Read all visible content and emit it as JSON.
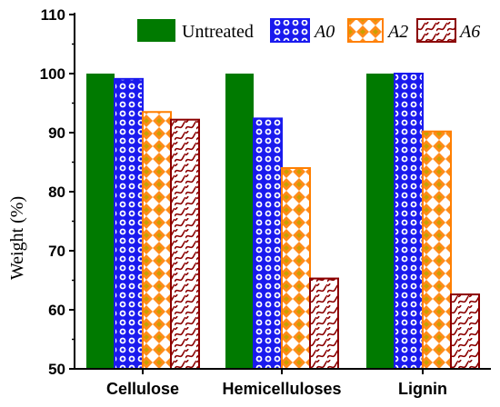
{
  "chart_data": {
    "type": "bar",
    "categories": [
      "Cellulose",
      "Hemicelluloses",
      "Lignin"
    ],
    "series": [
      {
        "name": "Untreated",
        "values": [
          100,
          100,
          100
        ],
        "color": "#007a00",
        "pattern": "solid"
      },
      {
        "name": "A0",
        "values": [
          99.1,
          92.4,
          100
        ],
        "color": "#1a1aee",
        "pattern": "circles"
      },
      {
        "name": "A2",
        "values": [
          93.5,
          84.0,
          90.2
        ],
        "color": "#ff7f00",
        "pattern": "diamonds"
      },
      {
        "name": "A6",
        "values": [
          92.2,
          65.3,
          62.6
        ],
        "color": "#8b0000",
        "pattern": "waves"
      }
    ],
    "title": "",
    "xlabel": "",
    "ylabel": "Weight (%)",
    "ylim": [
      50,
      110
    ],
    "yticks": [
      50,
      60,
      70,
      80,
      90,
      100,
      110
    ],
    "legend_position": "top"
  }
}
